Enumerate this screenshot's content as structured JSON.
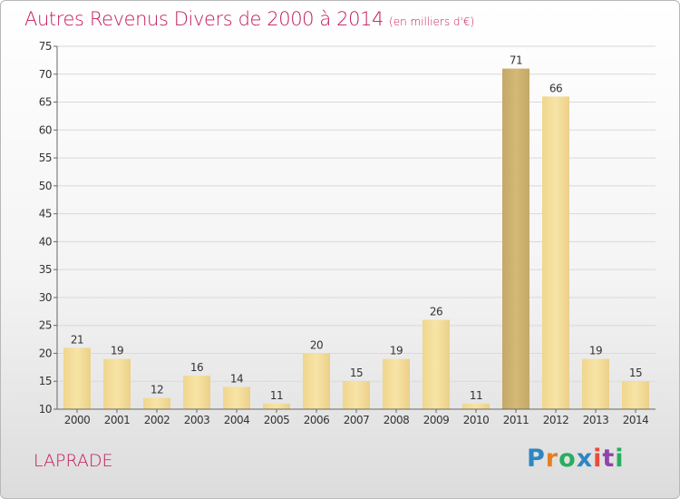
{
  "header": {
    "title": "Autres Revenus Divers de 2000 à 2014",
    "unit": "(en milliers d'€)"
  },
  "footer": {
    "commune": "LAPRADE",
    "logo": "Proxiti"
  },
  "colors": {
    "title": "#c2185b",
    "bar_light": "#f3d98f",
    "bar_dark": "#c9ad6c",
    "grid": "#d9d9d9"
  },
  "chart_data": {
    "type": "bar",
    "categories": [
      "2000",
      "2001",
      "2002",
      "2003",
      "2004",
      "2005",
      "2006",
      "2007",
      "2008",
      "2009",
      "2010",
      "2011",
      "2012",
      "2013",
      "2014"
    ],
    "values": [
      21,
      19,
      12,
      16,
      14,
      11,
      20,
      15,
      19,
      26,
      11,
      71,
      66,
      19,
      15
    ],
    "highlight": "2011",
    "title": "Autres Revenus Divers de 2000 à 2014",
    "xlabel": "",
    "ylabel": "",
    "ylim": [
      10,
      75
    ],
    "yticks": [
      10,
      15,
      20,
      25,
      30,
      35,
      40,
      45,
      50,
      55,
      60,
      65,
      70,
      75
    ],
    "grid": true,
    "legend": "none"
  }
}
